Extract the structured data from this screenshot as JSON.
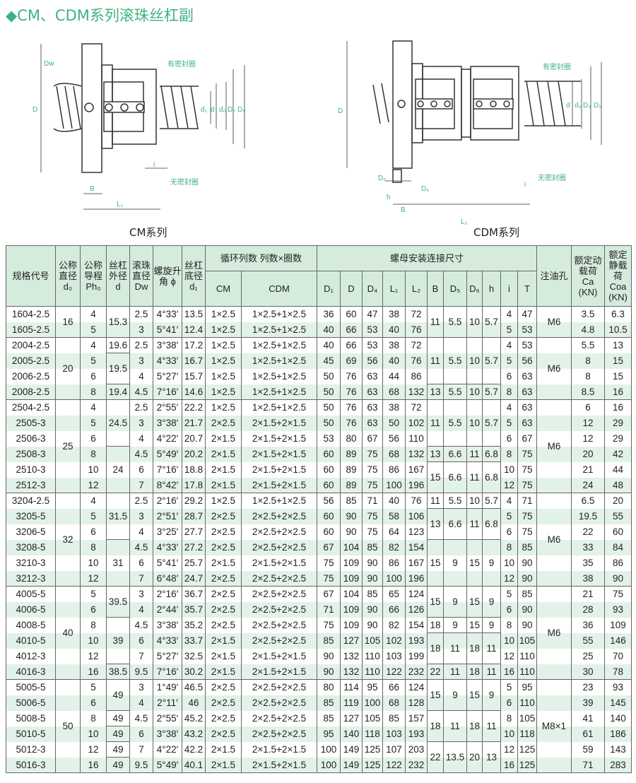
{
  "title": "◆CM、CDM系列滚珠丝杠副",
  "diagrams": {
    "cm": {
      "caption": "CM系列",
      "labels": {
        "seal_with": "有密封圈",
        "seal_without": "无密封圈",
        "Dw": "Dw",
        "D": "D",
        "d1": "d₁",
        "d": "d",
        "d0": "d₀",
        "D2": "D₂",
        "D1": "D₁",
        "i": "i",
        "B": "B",
        "L1": "L₁"
      }
    },
    "cdm": {
      "caption": "CDM系列",
      "labels": {
        "seal_with": "有密封圈",
        "seal_without": "无密封圈",
        "D": "D",
        "d": "d",
        "d0": "d₀",
        "D2": "D₂",
        "D1": "D₁",
        "D6": "D₆",
        "D5": "D₅",
        "h": "h",
        "B": "B",
        "i": "i",
        "L2": "L₂"
      }
    },
    "accent": "#3fb37f"
  },
  "table": {
    "headers": {
      "spec": "规格代号",
      "d0": "公称直径 d₀",
      "ph0": "公称导程 Ph₀",
      "d": "丝杠外径 d",
      "dw": "滚珠直径 Dw",
      "phi": "螺旋升角 ϕ",
      "d1": "丝杠底径 d₁",
      "cycle": "循环列数 列数×圈数",
      "cm": "CM",
      "cdm": "CDM",
      "mount": "螺母安装连接尺寸",
      "D1": "D₁",
      "D": "D",
      "D4": "D₄",
      "L1": "L₁",
      "L2": "L₂",
      "B": "B",
      "D5": "D₅",
      "D6": "D₆",
      "h": "h",
      "i": "i",
      "T": "T",
      "oil": "注油孔",
      "ca": "额定动载荷 Ca (KN)",
      "coa": "额定静载荷 Coa (KN)"
    },
    "rows": [
      [
        "1604-2.5",
        "4",
        "2.5",
        "4°33′",
        "13.5",
        "1×2.5",
        "1×2.5+1×2.5",
        "36",
        "60",
        "47",
        "38",
        "72",
        "4",
        "47",
        "3.5",
        "6.3"
      ],
      [
        "1605-2.5",
        "5",
        "3",
        "5°41′",
        "12.4",
        "1×2.5",
        "1×2.5+1×2.5",
        "40",
        "66",
        "53",
        "40",
        "76",
        "5",
        "53",
        "4.8",
        "10.5"
      ],
      [
        "2004-2.5",
        "4",
        "2.5",
        "3°38′",
        "17.2",
        "1×2.5",
        "1×2.5+1×2.5",
        "40",
        "66",
        "53",
        "38",
        "72",
        "4",
        "53",
        "5.5",
        "13"
      ],
      [
        "2005-2.5",
        "5",
        "3",
        "4°33′",
        "16.7",
        "1×2.5",
        "1×2.5+1×2.5",
        "45",
        "69",
        "56",
        "40",
        "76",
        "5",
        "56",
        "8",
        "15"
      ],
      [
        "2006-2.5",
        "6",
        "4",
        "5°27′",
        "15.7",
        "1×2.5",
        "1×2.5+1×2.5",
        "50",
        "76",
        "63",
        "44",
        "86",
        "6",
        "63",
        "8",
        "15"
      ],
      [
        "2008-2.5",
        "8",
        "4.5",
        "7°16′",
        "14.6",
        "1×2.5",
        "1×2.5+1×2.5",
        "50",
        "76",
        "63",
        "68",
        "132",
        "8",
        "63",
        "8.5",
        "16"
      ],
      [
        "2504-2.5",
        "4",
        "2.5",
        "2°55′",
        "22.2",
        "1×2.5",
        "1×2.5+1×2.5",
        "50",
        "76",
        "63",
        "38",
        "72",
        "4",
        "63",
        "6",
        "16"
      ],
      [
        "2505-3",
        "5",
        "3",
        "3°38′",
        "21.7",
        "2×2.5",
        "2×1.5+2×1.5",
        "50",
        "76",
        "63",
        "50",
        "102",
        "5",
        "63",
        "12",
        "29"
      ],
      [
        "2506-3",
        "6",
        "4",
        "4°22′",
        "20.7",
        "2×1.5",
        "2×1.5+2×1.5",
        "53",
        "80",
        "67",
        "56",
        "110",
        "6",
        "67",
        "12",
        "29"
      ],
      [
        "2508-3",
        "8",
        "4.5",
        "5°49′",
        "20.2",
        "2×1.5",
        "2×1.5+2×1.5",
        "60",
        "89",
        "75",
        "68",
        "132",
        "8",
        "75",
        "20",
        "42"
      ],
      [
        "2510-3",
        "10",
        "6",
        "7°16′",
        "18.8",
        "2×1.5",
        "2×1.5+2×1.5",
        "60",
        "89",
        "75",
        "86",
        "167",
        "10",
        "75",
        "21",
        "44"
      ],
      [
        "2512-3",
        "12",
        "7",
        "8°42′",
        "17.8",
        "2×1.5",
        "2×1.5+2×1.5",
        "60",
        "89",
        "75",
        "100",
        "196",
        "12",
        "75",
        "24",
        "48"
      ],
      [
        "3204-2.5",
        "4",
        "2.5",
        "2°16′",
        "29.2",
        "1×2.5",
        "1×2.5+1×2.5",
        "56",
        "85",
        "71",
        "40",
        "76",
        "4",
        "71",
        "6.5",
        "20"
      ],
      [
        "3205-5",
        "5",
        "3",
        "2°51′",
        "28.7",
        "2×2.5",
        "2×2.5+2×2.5",
        "60",
        "90",
        "75",
        "58",
        "106",
        "5",
        "75",
        "19.5",
        "55"
      ],
      [
        "3206-5",
        "6",
        "4",
        "3°25′",
        "27.7",
        "2×2.5",
        "2×2.5+2×2.5",
        "60",
        "90",
        "75",
        "64",
        "123",
        "6",
        "75",
        "22",
        "60"
      ],
      [
        "3208-5",
        "8",
        "4.5",
        "4°33′",
        "27.2",
        "2×2.5",
        "2×2.5+2×2.5",
        "67",
        "104",
        "85",
        "82",
        "154",
        "8",
        "85",
        "33",
        "84"
      ],
      [
        "3210-3",
        "10",
        "6",
        "5°41′",
        "25.7",
        "2×1.5",
        "2×1.5+2×1.5",
        "75",
        "109",
        "90",
        "86",
        "167",
        "10",
        "90",
        "35",
        "86"
      ],
      [
        "3212-3",
        "12",
        "7",
        "6°48′",
        "24.7",
        "2×2.5",
        "2×2.5+2×2.5",
        "75",
        "109",
        "90",
        "100",
        "196",
        "12",
        "90",
        "38",
        "90"
      ],
      [
        "4005-5",
        "5",
        "3",
        "2°16′",
        "36.7",
        "2×2.5",
        "2×2.5+2×2.5",
        "67",
        "104",
        "85",
        "65",
        "124",
        "5",
        "85",
        "21",
        "75"
      ],
      [
        "4006-5",
        "6",
        "4",
        "2°44′",
        "35.7",
        "2×2.5",
        "2×2.5+2×2.5",
        "71",
        "109",
        "90",
        "66",
        "126",
        "6",
        "90",
        "28",
        "93"
      ],
      [
        "4008-5",
        "8",
        "4.5",
        "3°38′",
        "35.2",
        "2×2.5",
        "2×2.5+2×2.5",
        "75",
        "109",
        "90",
        "82",
        "154",
        "8",
        "90",
        "36",
        "109"
      ],
      [
        "4010-5",
        "10",
        "6",
        "4°33′",
        "33.7",
        "2×1.5",
        "2×2.5+2×2.5",
        "85",
        "127",
        "105",
        "102",
        "193",
        "10",
        "105",
        "55",
        "146"
      ],
      [
        "4012-3",
        "12",
        "7",
        "5°27′",
        "32.5",
        "2×1.5",
        "2×1.5+2×1.5",
        "90",
        "132",
        "110",
        "103",
        "199",
        "12",
        "110",
        "25",
        "70"
      ],
      [
        "4016-3",
        "16",
        "9.5",
        "7°16′",
        "30.2",
        "2×1.5",
        "2×1.5+2×1.5",
        "90",
        "132",
        "110",
        "122",
        "232",
        "16",
        "110",
        "30",
        "78"
      ],
      [
        "5005-5",
        "5",
        "3",
        "1°49′",
        "46.5",
        "2×2.5",
        "2×2.5+2×2.5",
        "80",
        "114",
        "95",
        "66",
        "124",
        "5",
        "95",
        "23",
        "93"
      ],
      [
        "5006-5",
        "6",
        "4",
        "2°11′",
        "46",
        "2×2.5",
        "2×2.5+2×2.5",
        "85",
        "119",
        "100",
        "68",
        "128",
        "6",
        "110",
        "39",
        "145"
      ],
      [
        "5008-5",
        "8",
        "4.5",
        "2°55′",
        "45.2",
        "2×2.5",
        "2×2.5+2×2.5",
        "85",
        "127",
        "105",
        "85",
        "157",
        "8",
        "105",
        "41",
        "140"
      ],
      [
        "5010-5",
        "10",
        "6",
        "3°38′",
        "43.2",
        "2×2.5",
        "2×2.5+2×2.5",
        "95",
        "140",
        "118",
        "103",
        "193",
        "10",
        "118",
        "61",
        "186"
      ],
      [
        "5012-3",
        "12",
        "7",
        "4°22′",
        "42.2",
        "2×1.5",
        "2×1.5+2×1.5",
        "100",
        "149",
        "125",
        "107",
        "203",
        "12",
        "125",
        "59",
        "143"
      ],
      [
        "5016-3",
        "16",
        "9.5",
        "5°49′",
        "40.1",
        "2×1.5",
        "2×1.5+2×1.5",
        "100",
        "149",
        "125",
        "122",
        "232",
        "16",
        "125",
        "71",
        "283"
      ]
    ],
    "merged": {
      "d0": [
        [
          "16",
          2
        ],
        [
          "20",
          4
        ],
        [
          "25",
          6
        ],
        [
          "32",
          6
        ],
        [
          "40",
          6
        ],
        [
          "50",
          6
        ]
      ],
      "d": [
        [
          "15.3",
          2
        ],
        [
          "19.6",
          1
        ],
        [
          "19.5",
          2
        ],
        [
          "19.4",
          1
        ],
        [
          "24.5",
          3
        ],
        [
          "24",
          3
        ],
        [
          "31.5",
          3
        ],
        [
          "31",
          3
        ],
        [
          "39.5",
          2
        ],
        [
          "39",
          3
        ],
        [
          "38.5",
          1
        ],
        [
          "49",
          2
        ],
        [
          "49",
          1
        ],
        [
          "49",
          1
        ],
        [
          "49",
          1
        ],
        [
          "49",
          1
        ]
      ],
      "B": [
        [
          "11",
          2
        ],
        [
          "11",
          3
        ],
        [
          "13",
          1
        ],
        [
          "11",
          3
        ],
        [
          "13",
          1
        ],
        [
          "15",
          2
        ],
        [
          "11",
          1
        ],
        [
          "13",
          2
        ],
        [
          "15",
          3
        ],
        [
          "15",
          2
        ],
        [
          "18",
          1
        ],
        [
          "18",
          2
        ],
        [
          "22",
          1
        ],
        [
          "15",
          2
        ],
        [
          "18",
          2
        ],
        [
          "22",
          2
        ]
      ],
      "D5": [
        [
          "5.5",
          2
        ],
        [
          "5.5",
          3
        ],
        [
          "5.5",
          1
        ],
        [
          "5.5",
          3
        ],
        [
          "6.6",
          1
        ],
        [
          "6.6",
          2
        ],
        [
          "5.5",
          1
        ],
        [
          "6.6",
          2
        ],
        [
          "9",
          3
        ],
        [
          "9",
          2
        ],
        [
          "9",
          1
        ],
        [
          "11",
          2
        ],
        [
          "11",
          1
        ],
        [
          "9",
          2
        ],
        [
          "11",
          2
        ],
        [
          "13.5",
          2
        ]
      ],
      "D6": [
        [
          "10",
          2
        ],
        [
          "10",
          3
        ],
        [
          "10",
          1
        ],
        [
          "10",
          3
        ],
        [
          "11",
          1
        ],
        [
          "11",
          2
        ],
        [
          "10",
          1
        ],
        [
          "11",
          2
        ],
        [
          "15",
          3
        ],
        [
          "15",
          2
        ],
        [
          "15",
          1
        ],
        [
          "18",
          2
        ],
        [
          "18",
          1
        ],
        [
          "15",
          2
        ],
        [
          "18",
          2
        ],
        [
          "20",
          2
        ]
      ],
      "h": [
        [
          "5.7",
          2
        ],
        [
          "5.7",
          3
        ],
        [
          "5.7",
          1
        ],
        [
          "5.7",
          3
        ],
        [
          "6.8",
          1
        ],
        [
          "6.8",
          2
        ],
        [
          "5.7",
          1
        ],
        [
          "6.8",
          2
        ],
        [
          "9",
          3
        ],
        [
          "9",
          2
        ],
        [
          "9",
          1
        ],
        [
          "11",
          2
        ],
        [
          "11",
          1
        ],
        [
          "9",
          2
        ],
        [
          "11",
          2
        ],
        [
          "13",
          2
        ]
      ],
      "oil": [
        [
          "M6",
          2
        ],
        [
          "M6",
          4
        ],
        [
          "M6",
          6
        ],
        [
          "M6",
          6
        ],
        [
          "M6",
          6
        ],
        [
          "M8×1",
          6
        ]
      ]
    }
  }
}
